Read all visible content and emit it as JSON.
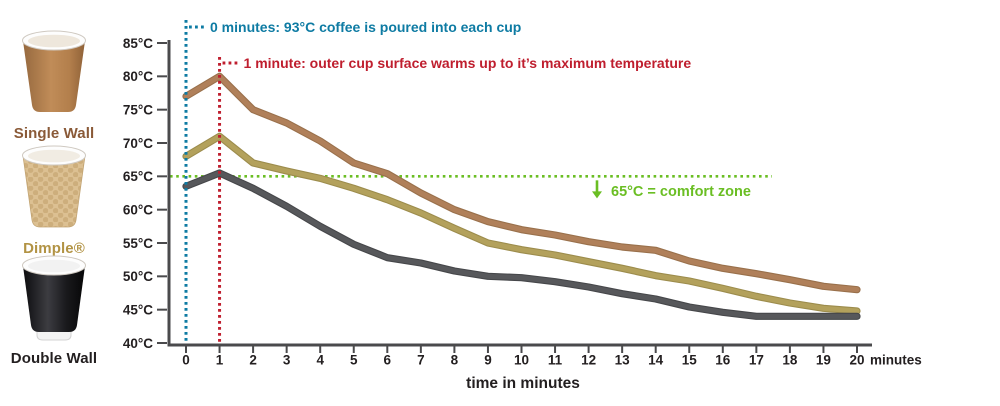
{
  "sidebar": {
    "cups": [
      {
        "label": "Single Wall",
        "label_color": "#8a5a38"
      },
      {
        "label": "Dimple®",
        "label_color": "#b29344"
      },
      {
        "label": "Double Wall",
        "label_color": "#231f20"
      }
    ]
  },
  "chart_data": {
    "type": "line",
    "x": [
      0,
      1,
      2,
      3,
      4,
      5,
      6,
      7,
      8,
      9,
      10,
      11,
      12,
      13,
      14,
      15,
      16,
      17,
      18,
      19,
      20
    ],
    "series": [
      {
        "name": "Single Wall",
        "color": "#b0805a",
        "edge_color": "#99704b",
        "values": [
          77,
          80,
          75,
          73,
          70.3,
          67,
          65.4,
          62.5,
          60,
          58.2,
          57,
          56.2,
          55.2,
          54.4,
          53.9,
          52.3,
          51.2,
          50.4,
          49.5,
          48.5,
          48
        ]
      },
      {
        "name": "Dimple",
        "color": "#b3a15c",
        "edge_color": "#9c8c4c",
        "values": [
          68,
          71,
          67,
          65.8,
          64.7,
          63.2,
          61.5,
          59.5,
          57.2,
          55,
          54,
          53.2,
          52.2,
          51.2,
          50.1,
          49.3,
          48.2,
          47,
          46,
          45.2,
          44.8
        ]
      },
      {
        "name": "Double Wall",
        "color": "#57585b",
        "edge_color": "#46474a",
        "values": [
          63.5,
          65.5,
          63.2,
          60.5,
          57.5,
          54.8,
          52.8,
          52,
          50.8,
          50,
          49.8,
          49.2,
          48.4,
          47.4,
          46.6,
          45.4,
          44.6,
          44,
          44,
          44,
          44
        ]
      }
    ],
    "ylim": [
      40,
      85
    ],
    "ytick_step": 5,
    "ytick_labels": [
      "85°C",
      "80°C",
      "75°C",
      "70°C",
      "65°C",
      "60°C",
      "55°C",
      "50°C",
      "45°C",
      "40°C"
    ],
    "xtick_labels": [
      "0",
      "1",
      "2",
      "3",
      "4",
      "5",
      "6",
      "7",
      "8",
      "9",
      "10",
      "11",
      "12",
      "13",
      "14",
      "15",
      "16",
      "17",
      "18",
      "19",
      "20"
    ],
    "x_unit_label": "minutes",
    "xlabel": "time in minutes",
    "grid": false,
    "legend_position": "none",
    "axis_color": "#4a4a4c",
    "tick_label_color": "#231f20",
    "annotations": {
      "pour": {
        "x": 0,
        "text": "0 minutes: 93°C coffee is poured into each cup",
        "color": "#0e7ba3"
      },
      "peak": {
        "x": 1,
        "text": "1 minute: outer cup surface warms up to it’s maximum temperature",
        "color": "#bf1e2e"
      },
      "comfort": {
        "y": 65,
        "text": "65°C = comfort zone",
        "color": "#6abe23"
      }
    }
  }
}
